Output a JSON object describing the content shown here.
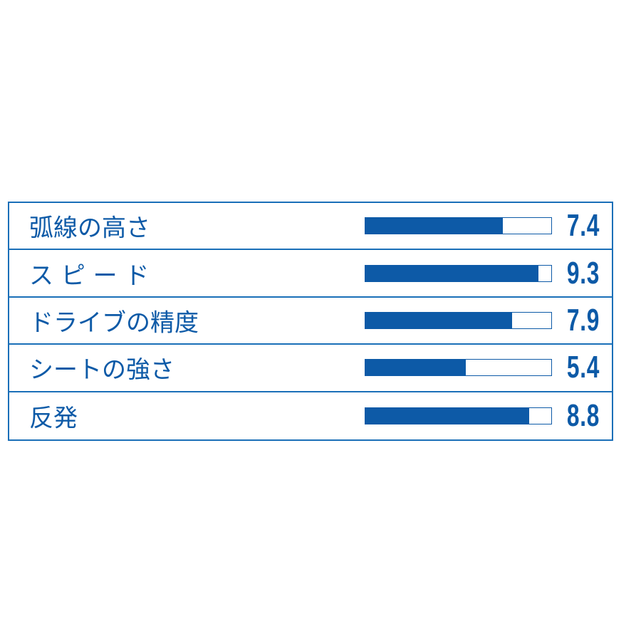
{
  "chart_data": {
    "type": "bar",
    "orientation": "horizontal",
    "scale_max": 10,
    "bar_color": "#0d5aa7",
    "border_color": "#1a6fb8",
    "rows": [
      {
        "label": "弧線の高さ",
        "value": 7.4,
        "value_text": "7.4"
      },
      {
        "label": "ス ピ ー ド",
        "value": 9.3,
        "value_text": "9.3"
      },
      {
        "label": "ドライブの精度",
        "value": 7.9,
        "value_text": "7.9"
      },
      {
        "label": "シートの強さ",
        "value": 5.4,
        "value_text": "5.4"
      },
      {
        "label": "反発",
        "value": 8.8,
        "value_text": "8.8"
      }
    ]
  }
}
